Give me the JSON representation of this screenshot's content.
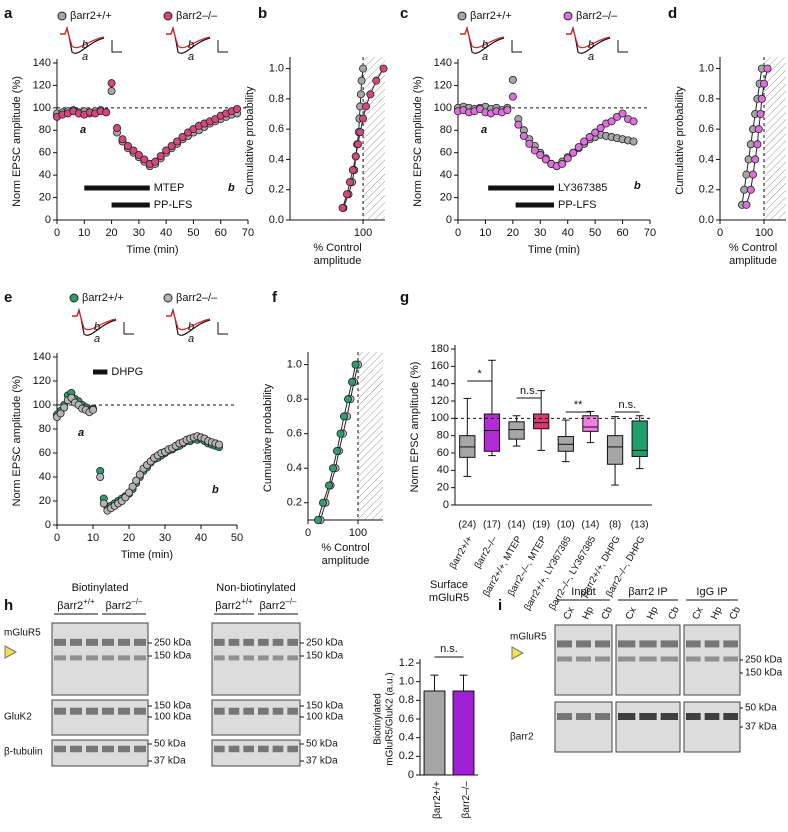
{
  "chart_data": [
    {
      "label": "a",
      "type": "scatter",
      "xlabel": "Time (min)",
      "ylabel": "Norm EPSC amplitude (%)",
      "xlim": [
        0,
        70
      ],
      "xticks": [
        0,
        10,
        20,
        30,
        40,
        50,
        60,
        70
      ],
      "ylim": [
        0,
        140
      ],
      "yticks": [
        0,
        20,
        40,
        60,
        80,
        100,
        120,
        140
      ],
      "hline": 100,
      "x": [
        0,
        2,
        4,
        6,
        8,
        10,
        12,
        14,
        16,
        18,
        20,
        22,
        24,
        26,
        28,
        30,
        32,
        34,
        36,
        38,
        40,
        42,
        44,
        46,
        48,
        50,
        52,
        54,
        56,
        58,
        60,
        62,
        64,
        66
      ],
      "series": [
        {
          "name": "βarr2+/+",
          "color": "#a6a6a6",
          "values": [
            95,
            96,
            97,
            98,
            96,
            97,
            95,
            97,
            98,
            96,
            115,
            78,
            70,
            64,
            60,
            56,
            52,
            48,
            50,
            55,
            60,
            64,
            68,
            72,
            75,
            78,
            80,
            83,
            86,
            88,
            90,
            92,
            94,
            95
          ]
        },
        {
          "name": "βarr2–/–",
          "color": "#d8457f",
          "values": [
            92,
            94,
            95,
            97,
            95,
            94,
            96,
            95,
            97,
            96,
            122,
            82,
            72,
            66,
            62,
            58,
            54,
            50,
            52,
            57,
            62,
            66,
            70,
            74,
            78,
            81,
            84,
            86,
            88,
            90,
            93,
            95,
            97,
            99
          ]
        }
      ],
      "drug_bars": [
        {
          "label": "MTEP",
          "start": 10,
          "end": 34
        },
        {
          "label": "PP-LFS",
          "start": 20,
          "end": 34
        }
      ],
      "annotations": [
        "a",
        "b"
      ],
      "annotation_colors": [
        "#222222",
        "#e0202a"
      ]
    },
    {
      "label": "b",
      "type": "line",
      "xlabel": [
        "% Control",
        "amplitude"
      ],
      "ylabel": "Cumulative probability",
      "xlim": [
        0,
        130
      ],
      "xticks": [
        100
      ],
      "ylim": [
        0,
        1.05
      ],
      "yticks": [
        {
          "value": 0,
          "label": "0.0"
        },
        0.2,
        0.4,
        0.6,
        0.8,
        {
          "value": 1,
          "label": "1.0"
        }
      ],
      "vline": 100,
      "shaded_from": 100,
      "series": [
        {
          "color": "#a6a6a6",
          "x": [
            73,
            80,
            85,
            88,
            90,
            92,
            94,
            95,
            96,
            97,
            98,
            100
          ],
          "values": [
            0.08,
            0.17,
            0.25,
            0.33,
            0.42,
            0.5,
            0.58,
            0.67,
            0.75,
            0.83,
            0.92,
            1.0
          ]
        },
        {
          "color": "#d8457f",
          "x": [
            72,
            78,
            82,
            86,
            90,
            93,
            96,
            100,
            104,
            110,
            118,
            128
          ],
          "values": [
            0.08,
            0.17,
            0.25,
            0.33,
            0.42,
            0.5,
            0.58,
            0.67,
            0.75,
            0.83,
            0.92,
            1.0
          ]
        }
      ]
    },
    {
      "label": "c",
      "type": "scatter",
      "xlabel": "Time (min)",
      "ylabel": "Norm EPSC amplitude (%)",
      "xlim": [
        0,
        70
      ],
      "xticks": [
        0,
        10,
        20,
        30,
        40,
        50,
        60,
        70
      ],
      "ylim": [
        0,
        140
      ],
      "yticks": [
        0,
        20,
        40,
        60,
        80,
        100,
        120,
        140
      ],
      "hline": 100,
      "x": [
        0,
        2,
        4,
        6,
        8,
        10,
        12,
        14,
        16,
        18,
        20,
        22,
        24,
        26,
        28,
        30,
        32,
        34,
        36,
        38,
        40,
        42,
        44,
        46,
        48,
        50,
        52,
        54,
        56,
        58,
        60,
        62,
        64
      ],
      "series": [
        {
          "name": "βarr2+/+",
          "color": "#a6a6a6",
          "values": [
            100,
            101,
            100,
            99,
            100,
            101,
            99,
            100,
            98,
            100,
            125,
            90,
            80,
            72,
            66,
            60,
            55,
            50,
            48,
            52,
            56,
            60,
            64,
            68,
            72,
            74,
            76,
            75,
            74,
            73,
            72,
            71,
            70
          ]
        },
        {
          "name": "βarr2–/–",
          "color": "#e06ee0",
          "values": [
            97,
            98,
            96,
            97,
            99,
            96,
            95,
            97,
            96,
            98,
            110,
            85,
            75,
            68,
            62,
            58,
            54,
            50,
            48,
            50,
            55,
            60,
            65,
            70,
            74,
            78,
            82,
            86,
            88,
            92,
            95,
            90,
            88
          ]
        }
      ],
      "drug_bars": [
        {
          "label": "LY367385",
          "start": 11,
          "end": 35
        },
        {
          "label": "PP-LFS",
          "start": 21,
          "end": 35
        }
      ],
      "annotations": [
        "a",
        "b"
      ],
      "annotation_colors": [
        "#222222",
        "#e0202a"
      ]
    },
    {
      "label": "d",
      "type": "line",
      "xlabel": [
        "% Control",
        "amplitude"
      ],
      "ylabel": "Cumulative probability",
      "xlim": [
        0,
        150
      ],
      "xticks": [
        0,
        100
      ],
      "ylim": [
        0,
        1.05
      ],
      "yticks": [
        {
          "value": 0,
          "label": "0.0"
        },
        0.2,
        0.4,
        0.6,
        0.8,
        {
          "value": 1,
          "label": "1.0"
        }
      ],
      "vline": 100,
      "shaded_from": 100,
      "series": [
        {
          "color": "#a6a6a6",
          "x": [
            50,
            55,
            60,
            65,
            70,
            75,
            80,
            85,
            90,
            95
          ],
          "values": [
            0.1,
            0.2,
            0.3,
            0.4,
            0.5,
            0.6,
            0.7,
            0.8,
            0.9,
            1.0
          ]
        },
        {
          "color": "#e06ee0",
          "x": [
            60,
            70,
            75,
            80,
            85,
            88,
            92,
            95,
            100,
            108
          ],
          "values": [
            0.1,
            0.2,
            0.3,
            0.4,
            0.5,
            0.6,
            0.7,
            0.8,
            0.9,
            1.0
          ]
        }
      ]
    },
    {
      "label": "e",
      "type": "scatter",
      "xlabel": "Time (min)",
      "ylabel": "Norm EPSC amplitude (%)",
      "xlim": [
        0,
        50
      ],
      "xticks": [
        0,
        10,
        20,
        30,
        40,
        50
      ],
      "ylim": [
        0,
        140
      ],
      "yticks": [
        0,
        20,
        40,
        60,
        80,
        100,
        120,
        140
      ],
      "hline": 100,
      "x": [
        0,
        1,
        2,
        3,
        4,
        5,
        6,
        7,
        8,
        9,
        10,
        12,
        13,
        14,
        15,
        16,
        17,
        18,
        19,
        20,
        21,
        22,
        23,
        24,
        25,
        26,
        27,
        28,
        29,
        30,
        31,
        32,
        33,
        34,
        35,
        36,
        37,
        38,
        39,
        40,
        41,
        42,
        43,
        44,
        45
      ],
      "series": [
        {
          "name": "βarr2+/+",
          "color": "#2e9e6e",
          "values": [
            92,
            95,
            100,
            108,
            110,
            105,
            103,
            100,
            98,
            95,
            97,
            45,
            22,
            15,
            16,
            18,
            20,
            22,
            24,
            26,
            30,
            35,
            40,
            45,
            48,
            52,
            55,
            56,
            58,
            60,
            62,
            63,
            65,
            66,
            68,
            70,
            70,
            72,
            71,
            72,
            70,
            68,
            67,
            66,
            65
          ]
        },
        {
          "name": "βarr2–/–",
          "color": "#b5b5b5",
          "values": [
            90,
            93,
            98,
            104,
            106,
            102,
            100,
            97,
            96,
            94,
            96,
            40,
            18,
            12,
            14,
            16,
            18,
            20,
            23,
            27,
            32,
            37,
            42,
            47,
            50,
            53,
            56,
            58,
            60,
            61,
            63,
            64,
            66,
            68,
            69,
            71,
            72,
            73,
            74,
            73,
            72,
            70,
            69,
            68,
            67
          ]
        }
      ],
      "drug_bars": [
        {
          "label": "DHPG",
          "start": 10,
          "end": 14
        }
      ],
      "annotations": [
        "a",
        "b"
      ],
      "annotation_colors": [
        "#222222",
        "#e0202a"
      ]
    },
    {
      "label": "f",
      "type": "line",
      "xlabel": [
        "% Control",
        "amplitude"
      ],
      "ylabel": "Cumulative probability",
      "xlim": [
        0,
        150
      ],
      "xticks": [
        0,
        100
      ],
      "ylim": [
        0.1,
        1.05
      ],
      "yticks": [
        0.2,
        0.4,
        0.6,
        0.8,
        {
          "value": 1,
          "label": "1.0"
        }
      ],
      "vline": 100,
      "shaded_from": 100,
      "series": [
        {
          "color": "#b5b5b5",
          "x": [
            25,
            35,
            45,
            55,
            62,
            70,
            78,
            85,
            92,
            100
          ],
          "values": [
            0.1,
            0.2,
            0.3,
            0.4,
            0.5,
            0.6,
            0.7,
            0.8,
            0.9,
            1.0
          ]
        },
        {
          "color": "#2e9e6e",
          "x": [
            20,
            30,
            42,
            50,
            58,
            65,
            72,
            80,
            88,
            95
          ],
          "values": [
            0.1,
            0.2,
            0.3,
            0.4,
            0.5,
            0.6,
            0.7,
            0.8,
            0.9,
            1.0
          ]
        }
      ]
    },
    {
      "label": "g",
      "type": "box",
      "ylabel": "Norm EPSC amplitude (%)",
      "ylim": [
        0,
        180
      ],
      "yticks": [
        0,
        20,
        40,
        60,
        80,
        100,
        120,
        140,
        160,
        180
      ],
      "hline": 100,
      "categories": [
        "βarr2+/+",
        "βarr2–/–",
        "βarr2+/+, MTEP",
        "βarr2–/–, MTEP",
        "βarr2+/+, LY367385",
        "βarr2–/–, LY367385",
        "βarr2+/+, DHPG",
        "βarr2–/–, DHPG"
      ],
      "boxes": [
        {
          "whisker_low": 33,
          "q1": 55,
          "median": 67,
          "q3": 80,
          "whisker_high": 123,
          "color": "#a6a6a6"
        },
        {
          "whisker_low": 57,
          "q1": 62,
          "median": 86,
          "q3": 105,
          "whisker_high": 167,
          "color": "#b22bd6"
        },
        {
          "whisker_low": 68,
          "q1": 76,
          "median": 87,
          "q3": 96,
          "whisker_high": 103,
          "color": "#a6a6a6"
        },
        {
          "whisker_low": 63,
          "q1": 88,
          "median": 95,
          "q3": 105,
          "whisker_high": 132,
          "color": "#e6336f"
        },
        {
          "whisker_low": 50,
          "q1": 62,
          "median": 70,
          "q3": 79,
          "whisker_high": 98,
          "color": "#a6a6a6"
        },
        {
          "whisker_low": 72,
          "q1": 85,
          "median": 90,
          "q3": 103,
          "whisker_high": 108,
          "color": "#f080e0"
        },
        {
          "whisker_low": 23,
          "q1": 47,
          "median": 67,
          "q3": 80,
          "whisker_high": 102,
          "color": "#a6a6a6"
        },
        {
          "whisker_low": 42,
          "q1": 56,
          "median": 63,
          "q3": 97,
          "whisker_high": 103,
          "color": "#1fa06a"
        }
      ],
      "n_labels": [
        "(24)",
        "(17)",
        "(14)",
        "(19)",
        "(10)",
        "(14)",
        "(8)",
        "(13)"
      ],
      "significance": [
        "*",
        "n.s.",
        "**",
        "n.s."
      ]
    },
    {
      "type": "bar",
      "title": [
        "Surface",
        "mGluR5"
      ],
      "ylabel": [
        "Biotinylated",
        "mGluR5/GluK2 (a.u.)"
      ],
      "categories": [
        "βarr2+/+",
        "βarr2–/–"
      ],
      "values": [
        0.9,
        0.9
      ],
      "errors": [
        0.17,
        0.17
      ],
      "colors": [
        "#a6a6a6",
        "#a020d8"
      ],
      "ylim": [
        0,
        1.2
      ],
      "yticks": [
        0,
        0.2,
        0.4,
        0.6,
        0.8,
        {
          "value": 1,
          "label": "1.0"
        },
        1.2
      ],
      "annotation": "n.s."
    }
  ],
  "blots": {
    "h": {
      "label": "h",
      "groups": [
        {
          "title": "Biotinylated",
          "genotypes": [
            [
              "βarr2",
              "+/+"
            ],
            [
              "βarr2",
              "–/–"
            ]
          ]
        },
        {
          "title": "Non-biotinylated",
          "genotypes": [
            [
              "βarr2",
              "+/+"
            ],
            [
              "βarr2",
              "–/–"
            ]
          ]
        }
      ],
      "rows": [
        "mGluR5",
        "GluK2",
        "β-tubulin"
      ],
      "markers": [
        [
          "250 kDa",
          "150 kDa"
        ],
        [
          "150 kDa",
          "100 kDa"
        ],
        [
          "50 kDa",
          "37 kDa"
        ]
      ]
    },
    "i": {
      "label": "i",
      "groups": [
        "Input",
        "βarr2 IP",
        "IgG IP"
      ],
      "lanes": [
        "Cx",
        "Hp",
        "Cb"
      ],
      "rows": [
        "mGluR5",
        "βarr2"
      ],
      "markers": [
        [
          "250 kDa",
          "150 kDa"
        ],
        [
          "50 kDa",
          "37 kDa"
        ]
      ]
    }
  }
}
